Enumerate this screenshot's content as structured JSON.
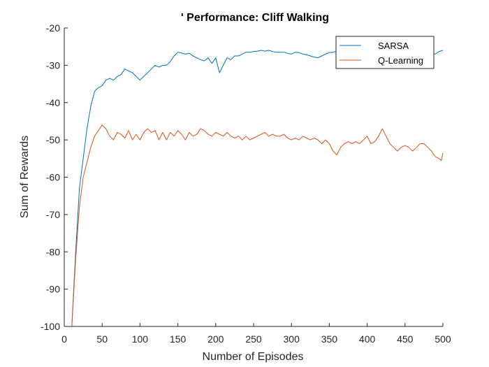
{
  "chart_data": {
    "type": "line",
    "title": "' Performance: Cliff Walking",
    "xlabel": "Number of Episodes",
    "ylabel": "Sum of Rewards",
    "xlim": [
      0,
      500
    ],
    "ylim": [
      -100,
      -20
    ],
    "xticks": [
      0,
      50,
      100,
      150,
      200,
      250,
      300,
      350,
      400,
      450,
      500
    ],
    "yticks": [
      -100,
      -90,
      -80,
      -70,
      -60,
      -50,
      -40,
      -30,
      -20
    ],
    "grid": false,
    "legend_position": "top-right",
    "series": [
      {
        "name": "SARSA",
        "color": "#0072BD",
        "points": [
          [
            10,
            -100
          ],
          [
            15,
            -80
          ],
          [
            20,
            -63
          ],
          [
            25,
            -55
          ],
          [
            30,
            -47
          ],
          [
            35,
            -41
          ],
          [
            40,
            -37
          ],
          [
            45,
            -36
          ],
          [
            50,
            -35.5
          ],
          [
            55,
            -34
          ],
          [
            60,
            -33.5
          ],
          [
            65,
            -34
          ],
          [
            70,
            -33
          ],
          [
            75,
            -32.5
          ],
          [
            80,
            -31
          ],
          [
            85,
            -31.5
          ],
          [
            90,
            -32
          ],
          [
            95,
            -33
          ],
          [
            100,
            -34
          ],
          [
            105,
            -33
          ],
          [
            110,
            -32
          ],
          [
            115,
            -31
          ],
          [
            120,
            -30
          ],
          [
            125,
            -30.5
          ],
          [
            130,
            -30
          ],
          [
            135,
            -30
          ],
          [
            140,
            -29
          ],
          [
            145,
            -27.5
          ],
          [
            150,
            -26.5
          ],
          [
            155,
            -26.7
          ],
          [
            160,
            -27
          ],
          [
            165,
            -26.8
          ],
          [
            170,
            -27.5
          ],
          [
            175,
            -28
          ],
          [
            180,
            -28.5
          ],
          [
            185,
            -28.8
          ],
          [
            190,
            -28
          ],
          [
            195,
            -29.5
          ],
          [
            200,
            -28
          ],
          [
            205,
            -32
          ],
          [
            210,
            -30
          ],
          [
            215,
            -28
          ],
          [
            220,
            -28.5
          ],
          [
            225,
            -27.5
          ],
          [
            230,
            -27.5
          ],
          [
            235,
            -27
          ],
          [
            240,
            -26.5
          ],
          [
            245,
            -26.5
          ],
          [
            250,
            -26.3
          ],
          [
            255,
            -26.2
          ],
          [
            260,
            -26
          ],
          [
            265,
            -26.2
          ],
          [
            270,
            -26
          ],
          [
            275,
            -26.3
          ],
          [
            280,
            -26.5
          ],
          [
            285,
            -26.5
          ],
          [
            290,
            -26.5
          ],
          [
            295,
            -26.8
          ],
          [
            300,
            -27
          ],
          [
            305,
            -26.5
          ],
          [
            310,
            -26.6
          ],
          [
            315,
            -27
          ],
          [
            320,
            -27.2
          ],
          [
            325,
            -27.5
          ],
          [
            330,
            -27.8
          ],
          [
            335,
            -28
          ],
          [
            340,
            -27.5
          ],
          [
            345,
            -27
          ],
          [
            350,
            -26.6
          ],
          [
            355,
            -26.5
          ],
          [
            360,
            -26.2
          ],
          [
            365,
            -26
          ],
          [
            370,
            -26.5
          ],
          [
            375,
            -27
          ],
          [
            380,
            -27
          ],
          [
            385,
            -27.2
          ],
          [
            390,
            -27
          ],
          [
            395,
            -26.8
          ],
          [
            400,
            -27.5
          ],
          [
            405,
            -27
          ],
          [
            410,
            -26.8
          ],
          [
            415,
            -26.6
          ],
          [
            420,
            -27
          ],
          [
            425,
            -27.5
          ],
          [
            430,
            -27
          ],
          [
            435,
            -26.8
          ],
          [
            440,
            -27.5
          ],
          [
            445,
            -28
          ],
          [
            450,
            -27
          ],
          [
            455,
            -26.5
          ],
          [
            460,
            -26.5
          ],
          [
            465,
            -26.6
          ],
          [
            470,
            -27
          ],
          [
            475,
            -27.2
          ],
          [
            480,
            -27
          ],
          [
            485,
            -26.8
          ],
          [
            490,
            -27
          ],
          [
            495,
            -26.3
          ],
          [
            500,
            -26
          ]
        ]
      },
      {
        "name": "Q-Learning",
        "color": "#D95319",
        "points": [
          [
            10,
            -100
          ],
          [
            15,
            -82
          ],
          [
            20,
            -68
          ],
          [
            25,
            -60
          ],
          [
            30,
            -56
          ],
          [
            35,
            -52
          ],
          [
            40,
            -49
          ],
          [
            45,
            -47.5
          ],
          [
            50,
            -46
          ],
          [
            55,
            -47
          ],
          [
            60,
            -49
          ],
          [
            65,
            -50
          ],
          [
            70,
            -48
          ],
          [
            75,
            -48.5
          ],
          [
            80,
            -49.5
          ],
          [
            85,
            -47.5
          ],
          [
            90,
            -50
          ],
          [
            95,
            -48.5
          ],
          [
            100,
            -50
          ],
          [
            105,
            -48
          ],
          [
            110,
            -47
          ],
          [
            115,
            -48
          ],
          [
            120,
            -47.5
          ],
          [
            125,
            -50
          ],
          [
            130,
            -48
          ],
          [
            135,
            -50
          ],
          [
            140,
            -48
          ],
          [
            145,
            -49
          ],
          [
            150,
            -47.5
          ],
          [
            155,
            -48.5
          ],
          [
            160,
            -50
          ],
          [
            165,
            -48
          ],
          [
            170,
            -49
          ],
          [
            175,
            -48.5
          ],
          [
            180,
            -47
          ],
          [
            185,
            -47.5
          ],
          [
            190,
            -48.5
          ],
          [
            195,
            -49
          ],
          [
            200,
            -48
          ],
          [
            205,
            -48.5
          ],
          [
            210,
            -49
          ],
          [
            215,
            -48
          ],
          [
            220,
            -49
          ],
          [
            225,
            -49.5
          ],
          [
            230,
            -49
          ],
          [
            235,
            -50
          ],
          [
            240,
            -49
          ],
          [
            245,
            -50
          ],
          [
            250,
            -49.5
          ],
          [
            255,
            -49
          ],
          [
            260,
            -48.5
          ],
          [
            265,
            -48
          ],
          [
            270,
            -49
          ],
          [
            275,
            -48.5
          ],
          [
            280,
            -49
          ],
          [
            285,
            -49
          ],
          [
            290,
            -48.5
          ],
          [
            295,
            -49.5
          ],
          [
            300,
            -50
          ],
          [
            305,
            -49.5
          ],
          [
            310,
            -50
          ],
          [
            315,
            -49
          ],
          [
            320,
            -49.5
          ],
          [
            325,
            -50
          ],
          [
            330,
            -49.5
          ],
          [
            335,
            -50
          ],
          [
            340,
            -51
          ],
          [
            345,
            -50
          ],
          [
            350,
            -51
          ],
          [
            355,
            -53
          ],
          [
            360,
            -54
          ],
          [
            365,
            -52
          ],
          [
            370,
            -51
          ],
          [
            375,
            -50.5
          ],
          [
            380,
            -51
          ],
          [
            385,
            -50.5
          ],
          [
            390,
            -51
          ],
          [
            395,
            -50
          ],
          [
            400,
            -49
          ],
          [
            405,
            -51
          ],
          [
            410,
            -50.5
          ],
          [
            415,
            -49
          ],
          [
            420,
            -47
          ],
          [
            425,
            -49
          ],
          [
            430,
            -51
          ],
          [
            435,
            -52
          ],
          [
            440,
            -53
          ],
          [
            445,
            -52
          ],
          [
            450,
            -51.5
          ],
          [
            455,
            -52
          ],
          [
            460,
            -53
          ],
          [
            465,
            -52
          ],
          [
            470,
            -51
          ],
          [
            475,
            -51
          ],
          [
            480,
            -52
          ],
          [
            485,
            -53
          ],
          [
            490,
            -54.5
          ],
          [
            495,
            -55
          ],
          [
            498,
            -55.5
          ],
          [
            500,
            -53.5
          ]
        ]
      }
    ]
  }
}
